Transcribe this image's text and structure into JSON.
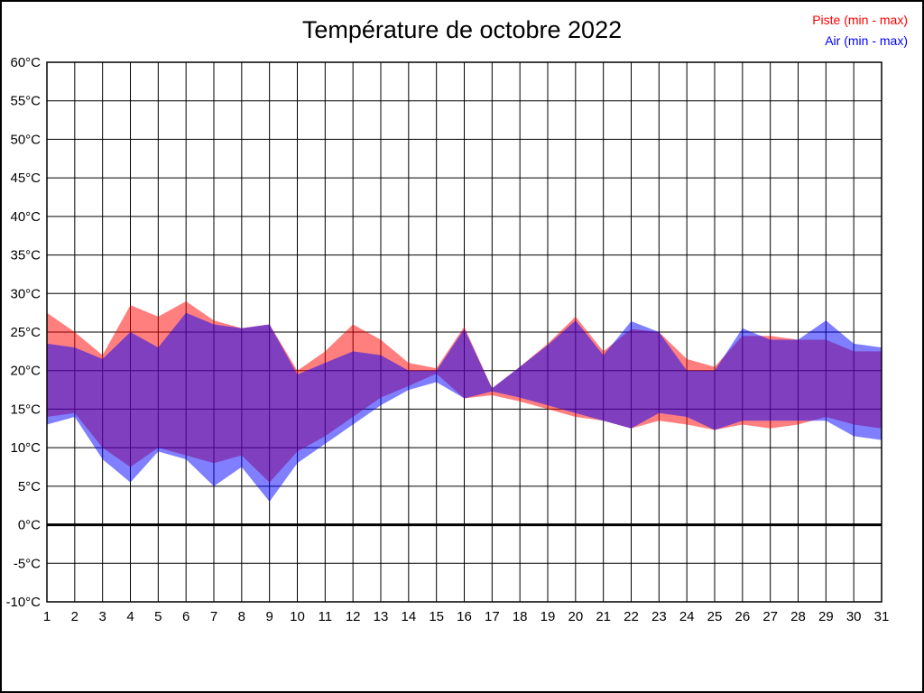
{
  "title": "Température de octobre 2022",
  "legend": {
    "piste_label": "Piste (min - max)",
    "air_label": "Air (min - max)"
  },
  "chart_data": {
    "type": "area",
    "title": "Température de octobre 2022",
    "xlabel": "",
    "ylabel": "",
    "x": [
      1,
      2,
      3,
      4,
      5,
      6,
      7,
      8,
      9,
      10,
      11,
      12,
      13,
      14,
      15,
      16,
      17,
      18,
      19,
      20,
      21,
      22,
      23,
      24,
      25,
      26,
      27,
      28,
      29,
      30,
      31
    ],
    "xlim": [
      1,
      31
    ],
    "ylim": [
      -10,
      60
    ],
    "ytick_step": 5,
    "ytick_suffix": "°C",
    "grid": true,
    "zero_line_bold": true,
    "legend_position": "top-right",
    "band_opacity": 0.5,
    "series": [
      {
        "name": "Piste (min - max)",
        "color": "#ff0000",
        "min": [
          14,
          14.5,
          10,
          7.5,
          10,
          9,
          8,
          9,
          5.5,
          9.5,
          11.5,
          14,
          16.5,
          18,
          19.6,
          16.4,
          16.8,
          16,
          15,
          14,
          13.5,
          12.5,
          13.5,
          13,
          12.3,
          13,
          12.5,
          13,
          14,
          13,
          12.5
        ],
        "max": [
          27.5,
          25,
          22,
          28.5,
          27,
          29,
          26.5,
          25.5,
          26,
          20,
          22.5,
          26,
          24,
          21,
          20.3,
          25.7,
          17.7,
          20.5,
          23.5,
          27,
          22.5,
          25.4,
          25,
          21.5,
          20.5,
          24.5,
          24.5,
          24,
          24,
          22.5,
          22.5
        ]
      },
      {
        "name": "Air (min - max)",
        "color": "#0000ff",
        "min": [
          13,
          14,
          8.5,
          5.5,
          9.5,
          8.5,
          5,
          7.5,
          3,
          8,
          10.5,
          13,
          15.5,
          17.5,
          18.5,
          16.4,
          17.3,
          16.5,
          15.5,
          14.5,
          13.5,
          12.5,
          14.5,
          14,
          12.3,
          13.5,
          13.5,
          13.5,
          13.5,
          11.5,
          11
        ],
        "max": [
          23.5,
          23,
          21.5,
          25,
          23,
          27.5,
          26,
          25.5,
          26,
          19.5,
          21,
          22.5,
          22,
          20,
          20,
          25.4,
          17.7,
          20.5,
          23.3,
          26.5,
          22,
          26.4,
          25,
          20,
          20,
          25.5,
          24,
          24,
          26.5,
          23.5,
          23
        ]
      }
    ]
  }
}
